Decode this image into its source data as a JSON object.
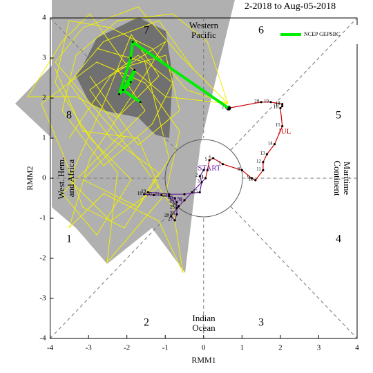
{
  "chart_data": {
    "type": "phase",
    "title": "2-2018 to Aug-05-2018",
    "x_label": "RMM1",
    "y_label": "RMM2",
    "xlim": [
      -4,
      4
    ],
    "ylim": [
      -4,
      4
    ],
    "xticks": [
      -4,
      -3,
      -2,
      -1,
      0,
      1,
      2,
      3,
      4
    ],
    "yticks": [
      -4,
      -3,
      -2,
      -1,
      0,
      1,
      2,
      3,
      4
    ],
    "phases": [
      "1",
      "2",
      "3",
      "4",
      "5",
      "6",
      "7",
      "8"
    ],
    "regions": [
      [
        "Western",
        "Pacific"
      ],
      [
        "Maritime",
        "Continent"
      ],
      [
        "Indian",
        "Ocean"
      ],
      [
        "West. Hem.",
        "and Africa"
      ]
    ],
    "annotations": [
      {
        "text": "START",
        "color": "#6a1fa0"
      },
      {
        "text": "JUN",
        "color": "#6a1fa0"
      },
      {
        "text": "JUL",
        "color": "#cc0000"
      }
    ],
    "observed": [
      {
        "color": "#6a1fa0",
        "x": [
          0.0,
          -0.1,
          -0.05,
          -0.1,
          -0.5,
          -0.9,
          -1.45,
          -1.55,
          -1.3,
          -1.1,
          -0.9,
          -0.75,
          -0.7,
          -0.7,
          -0.7,
          -0.75,
          -0.85,
          -0.65,
          -0.5,
          -0.3,
          0.05
        ],
        "y": [
          0.2,
          0.05,
          -0.1,
          -0.35,
          -0.4,
          -0.4,
          -0.35,
          -0.4,
          -0.42,
          -0.42,
          -0.45,
          -0.5,
          -0.6,
          -0.75,
          -0.9,
          -1.05,
          -0.95,
          -0.7,
          -0.55,
          -0.35,
          0.0
        ],
        "point_labels": [
          null,
          "2",
          "3",
          "15",
          null,
          null,
          "19",
          "18",
          "20",
          "21",
          "22",
          "23",
          "24",
          "25",
          "26",
          "27",
          "28",
          "29",
          "30",
          null,
          "1"
        ]
      },
      {
        "color": "#cc0000",
        "x": [
          0.05,
          0.1,
          0.15,
          0.25,
          0.5,
          1.0,
          1.25,
          1.35,
          1.55,
          1.55,
          1.65,
          1.85,
          2.05,
          2.0,
          2.05,
          2.05,
          1.75,
          1.5,
          0.65
        ],
        "y": [
          0.0,
          0.2,
          0.45,
          0.5,
          0.35,
          0.2,
          0.0,
          -0.05,
          0.2,
          0.4,
          0.6,
          0.85,
          1.3,
          1.75,
          1.8,
          1.85,
          1.9,
          1.9,
          1.75
        ],
        "point_labels": [
          "3",
          "4",
          "5",
          "6",
          "7",
          "8",
          "9",
          "10",
          "11",
          "12",
          "13",
          "14",
          "15",
          "16",
          "17",
          "18",
          "19",
          "20",
          "21"
        ]
      }
    ],
    "series": [
      {
        "name": "NCEP GEPSBC",
        "color": "#00ee00",
        "x": [
          0.65,
          -1.85,
          -1.9,
          -2.2,
          -1.9,
          -1.8,
          -2.1,
          -1.65
        ],
        "y": [
          1.75,
          3.4,
          3.0,
          2.1,
          2.4,
          2.7,
          2.2,
          1.9
        ]
      }
    ]
  }
}
